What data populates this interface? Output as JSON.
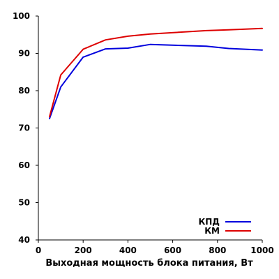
{
  "chart_data": {
    "type": "line",
    "title": "",
    "xlabel": "Выходная мощность блока питания, Вт",
    "ylabel": "",
    "xlim": [
      0,
      1000
    ],
    "ylim": [
      40,
      100
    ],
    "xticks": [
      0,
      200,
      400,
      600,
      800,
      1000
    ],
    "yticks": [
      40,
      50,
      60,
      70,
      80,
      90,
      100
    ],
    "grid": false,
    "legend": "bottom-right",
    "series": [
      {
        "name": "КПД",
        "color": "#0000dd",
        "x": [
          50,
          100,
          200,
          300,
          400,
          500,
          750,
          850,
          1000
        ],
        "y": [
          72.5,
          81,
          89,
          91.2,
          91.4,
          92.4,
          91.9,
          91.3,
          90.9
        ]
      },
      {
        "name": "КМ",
        "color": "#dd0000",
        "x": [
          50,
          100,
          200,
          300,
          400,
          500,
          750,
          850,
          1000
        ],
        "y": [
          73,
          84.2,
          91.1,
          93.6,
          94.6,
          95.2,
          96.1,
          96.3,
          96.7
        ]
      }
    ]
  }
}
